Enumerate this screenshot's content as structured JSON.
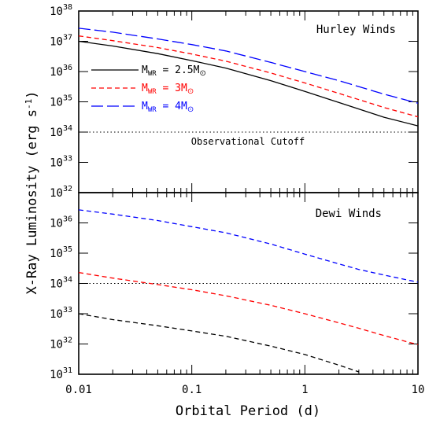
{
  "chart_data": [
    {
      "type": "line",
      "panel": "top",
      "title": "Hurley Winds",
      "xlabel": "Orbital Period (d)",
      "ylabel": "X-Ray Luminosity (erg s⁻¹)",
      "xscale": "log",
      "yscale": "log",
      "xlim": [
        0.01,
        10
      ],
      "ylim": [
        1e+32,
        1e+38
      ],
      "grid": false,
      "legend_position": "left, upper-middle",
      "x": [
        0.01,
        0.02,
        0.05,
        0.1,
        0.2,
        0.5,
        1,
        2,
        5,
        10
      ],
      "series": [
        {
          "name": "M_WR = 2.5M⊙",
          "color": "#000000",
          "dash": "solid",
          "values": [
            1e+37,
            7e+36,
            3.9e+36,
            2.3e+36,
            1.3e+36,
            5e+35,
            2.2e+35,
            9.5e+34,
            3.1e+34,
            1.6e+34
          ]
        },
        {
          "name": "M_WR = 3M⊙",
          "color": "#ff0000",
          "dash": "short",
          "values": [
            1.5e+37,
            1.05e+37,
            6.2e+36,
            3.8e+36,
            2.2e+36,
            9e+35,
            4.2e+35,
            1.9e+35,
            6.5e+34,
            3.2e+34
          ]
        },
        {
          "name": "M_WR = 4M⊙",
          "color": "#0000ff",
          "dash": "long",
          "values": [
            2.7e+37,
            2e+37,
            1.2e+37,
            7.8e+36,
            4.8e+36,
            2e+36,
            1e+36,
            5e+35,
            1.8e+35,
            9e+34
          ]
        }
      ],
      "reference_line": {
        "y": 1e+34,
        "label": "Observational Cutoff",
        "style": "dotted"
      },
      "yticks": [
        {
          "value": 1e+32,
          "label": "10^32"
        },
        {
          "value": 1e+33,
          "label": "10^33"
        },
        {
          "value": 1e+34,
          "label": "10^34"
        },
        {
          "value": 1e+35,
          "label": "10^35"
        },
        {
          "value": 1e+36,
          "label": "10^36"
        },
        {
          "value": 1e+37,
          "label": "10^37"
        },
        {
          "value": 1e+38,
          "label": "10^38"
        }
      ]
    },
    {
      "type": "line",
      "panel": "bottom",
      "title": "Dewi Winds",
      "xscale": "log",
      "yscale": "log",
      "xlim": [
        0.01,
        10
      ],
      "ylim": [
        1e+31,
        1e+37
      ],
      "grid": false,
      "x": [
        0.01,
        0.02,
        0.05,
        0.1,
        0.2,
        0.5,
        1,
        2,
        3,
        5,
        10
      ],
      "series": [
        {
          "name": "M_WR = 2.5M⊙",
          "color": "#000000",
          "dash": "short",
          "values": [
            1e+33,
            6.4e+32,
            4e+32,
            2.7e+32,
            1.8e+32,
            8.5e+31,
            4.5e+31,
            2e+31,
            1.2e+31,
            null,
            null
          ]
        },
        {
          "name": "M_WR = 3M⊙",
          "color": "#ff0000",
          "dash": "short",
          "values": [
            2.3e+34,
            1.5e+34,
            9.2e+33,
            6.2e+33,
            3.9e+33,
            1.9e+33,
            1e+33,
            5e+32,
            3.3e+32,
            1.9e+32,
            9.5e+31
          ]
        },
        {
          "name": "M_WR = 4M⊙",
          "color": "#0000ff",
          "dash": "short",
          "values": [
            2.7e+36,
            1.95e+36,
            1.2e+36,
            7.5e+35,
            4.7e+35,
            2e+35,
            9.3e+34,
            4.4e+34,
            2.9e+34,
            1.9e+34,
            1.1e+34
          ]
        }
      ],
      "reference_line": {
        "y": 1e+34,
        "style": "dotted"
      },
      "xticks": [
        {
          "value": 0.01,
          "label": "0.01"
        },
        {
          "value": 0.1,
          "label": "0.1"
        },
        {
          "value": 1,
          "label": "1"
        },
        {
          "value": 10,
          "label": "10"
        }
      ],
      "yticks": [
        {
          "value": 1e+31,
          "label": "10^31"
        },
        {
          "value": 1e+32,
          "label": "10^32"
        },
        {
          "value": 1e+33,
          "label": "10^33"
        },
        {
          "value": 1e+34,
          "label": "10^34"
        },
        {
          "value": 1e+35,
          "label": "10^35"
        },
        {
          "value": 1e+36,
          "label": "10^36"
        }
      ]
    }
  ],
  "legend": [
    {
      "label_m": "M",
      "label_sub": "WR",
      "label_rest": " = 2.5M",
      "sun": "⊙",
      "color": "#000000",
      "dash": "solid"
    },
    {
      "label_m": "M",
      "label_sub": "WR",
      "label_rest": " = 3M",
      "sun": "⊙",
      "color": "#ff0000",
      "dash": "short"
    },
    {
      "label_m": "M",
      "label_sub": "WR",
      "label_rest": " = 4M",
      "sun": "⊙",
      "color": "#0000ff",
      "dash": "long"
    }
  ],
  "axis": {
    "ylabel_main": "X-Ray Luminosity (erg s",
    "ylabel_sup": "-1",
    "ylabel_end": ")",
    "xlabel": "Orbital Period (d)"
  }
}
